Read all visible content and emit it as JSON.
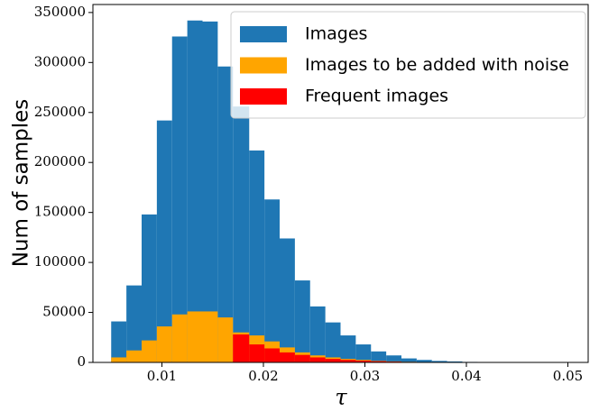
{
  "chart_data": {
    "type": "histogram",
    "xlabel": "τ",
    "ylabel": "Num of samples",
    "bins": [
      0.005,
      0.0065,
      0.008,
      0.0095,
      0.011,
      0.0125,
      0.014,
      0.0155,
      0.017,
      0.0186,
      0.0201,
      0.0216,
      0.0231,
      0.0246,
      0.0261,
      0.0276,
      0.0291,
      0.0306,
      0.0321,
      0.0336,
      0.0351,
      0.0366,
      0.0381,
      0.0396,
      0.0411,
      0.0427,
      0.0442,
      0.0457,
      0.0472,
      0.0487,
      0.0502
    ],
    "series": [
      {
        "name": "Images",
        "color": "#1f77b4",
        "values": [
          41000,
          77000,
          148000,
          242000,
          326000,
          342000,
          341000,
          296000,
          256000,
          212000,
          163000,
          124000,
          82000,
          56000,
          40000,
          27000,
          18000,
          11000,
          7000,
          4000,
          2500,
          1500,
          1000,
          500,
          300,
          200,
          100,
          100,
          50,
          50
        ]
      },
      {
        "name": "Images to be added with noise",
        "color": "#ffa500",
        "values": [
          5000,
          12000,
          22000,
          36000,
          48000,
          51000,
          51000,
          45000,
          30000,
          27000,
          21000,
          15000,
          10000,
          7000,
          5000,
          3500,
          2500,
          1500,
          1000,
          600,
          400,
          250,
          150,
          100,
          50,
          30,
          20,
          10,
          10,
          5
        ]
      },
      {
        "name": "Frequent images",
        "color": "#ff0000",
        "values": [
          0,
          0,
          0,
          0,
          0,
          0,
          0,
          0,
          28000,
          18000,
          14000,
          10000,
          7500,
          5000,
          3500,
          2500,
          1800,
          1200,
          800,
          500,
          300,
          200,
          100,
          60,
          40,
          20,
          10,
          10,
          5,
          5
        ]
      }
    ],
    "xlim": [
      0.0032,
      0.052
    ],
    "ylim": [
      0,
      358000
    ],
    "xticks": [
      0.01,
      0.02,
      0.03,
      0.04,
      0.05
    ],
    "yticks": [
      0,
      50000,
      100000,
      150000,
      200000,
      250000,
      300000,
      350000
    ],
    "legend": "upper right"
  }
}
